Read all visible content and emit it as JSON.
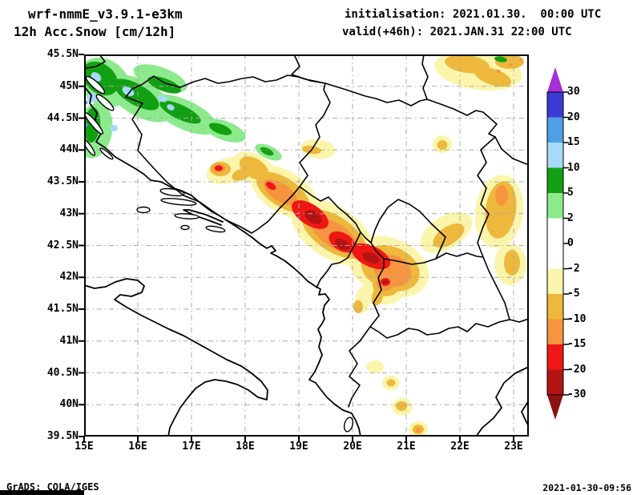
{
  "header": {
    "model_title": "wrf-nmmE_v3.9.1-e3km",
    "product_title": "12h Acc.Snow [cm/12h]",
    "init_line": "initialisation: 2021.01.30.  00:00 UTC",
    "valid_line": "valid(+46h): 2021.JAN.31 22:00 UTC"
  },
  "footer": {
    "credit": "GrADS: COLA/IGES",
    "generated": "2021-01-30-09:56"
  },
  "map": {
    "lat_tick_labels": [
      "45.5N",
      "45N",
      "44.5N",
      "44N",
      "43.5N",
      "43N",
      "42.5N",
      "42N",
      "41.5N",
      "41N",
      "40.5N",
      "40N",
      "39.5N"
    ],
    "lon_tick_labels": [
      "15E",
      "16E",
      "17E",
      "18E",
      "19E",
      "20E",
      "21E",
      "22E",
      "23E"
    ],
    "grid_color": "#a9a9a9",
    "line_color": "#000000"
  },
  "colorbar": {
    "tick_labels": [
      "30",
      "20",
      "15",
      "10",
      "5",
      "2",
      "0",
      "-2",
      "-5",
      "-10",
      "-15",
      "-20",
      "-30"
    ],
    "arrow_above_color": "#a52fd8",
    "arrow_below_color": "#8c1212",
    "segment_colors_top_to_bottom": [
      "#3c3ad4",
      "#4f9fe4",
      "#a8d9f8",
      "#12a012",
      "#8cea8c",
      "#ffffff",
      "#ffffff",
      "#fbf5ab",
      "#edb83c",
      "#f79440",
      "#ef1616",
      "#b21414"
    ]
  },
  "chart_data": {
    "type": "filled-contour-map",
    "variable": "12h accumulated snow",
    "units": "cm/12h",
    "model": "wrf-nmmE_v3.9.1-e3km",
    "init_time": "2021.01.30 00:00 UTC",
    "valid_time": "2021.JAN.31 22:00 UTC (+46h)",
    "region": {
      "lon_min_e": 15.0,
      "lon_max_e": 23.3,
      "lat_min_n": 39.5,
      "lat_max_n": 45.5
    },
    "contour_levels": [
      30,
      20,
      15,
      10,
      5,
      2,
      0,
      -2,
      -5,
      -10,
      -15,
      -20,
      -30
    ],
    "palette": {
      "gt_30": "#a52fd8",
      "20_30": "#3c3ad4",
      "15_20": "#4f9fe4",
      "10_15": "#a8d9f8",
      "5_10": "#12a012",
      "2_5": "#8cea8c",
      "0_2": "#ffffff",
      "m2_0": "#ffffff",
      "m5_m2": "#fbf5ab",
      "m10_m5": "#edb83c",
      "m15_m10": "#f79440",
      "m20_m15": "#ef1616",
      "m30_m20": "#b21414",
      "lt_m30": "#8c1212"
    },
    "shaded_features": [
      {
        "area": "NW Croatia / Slovenia border (top-left)",
        "shade": "green with light-blue cores",
        "approx_values": "2 to 15"
      },
      {
        "area": "Dinaric band central Bosnia to Montenegro/Kosovo",
        "shade": "yellow-orange-red with dark red cores",
        "approx_values": "-5 to below -30"
      },
      {
        "area": "Kosovo / Sar mountains cluster",
        "shade": "orange-red spot",
        "approx_values": "-5 to -20"
      },
      {
        "area": "SW Romania / Carpathians (top-right)",
        "shade": "golden patches with small green spot",
        "approx_values": "-2 to -10, local 2 to 5"
      },
      {
        "area": "E Serbia / W Bulgaria strip (right edge)",
        "shade": "golden",
        "approx_values": "-2 to -10"
      },
      {
        "area": "Albania-Greece border spots (bottom-centre)",
        "shade": "small golden spots",
        "approx_values": "-2 to -10"
      }
    ]
  }
}
